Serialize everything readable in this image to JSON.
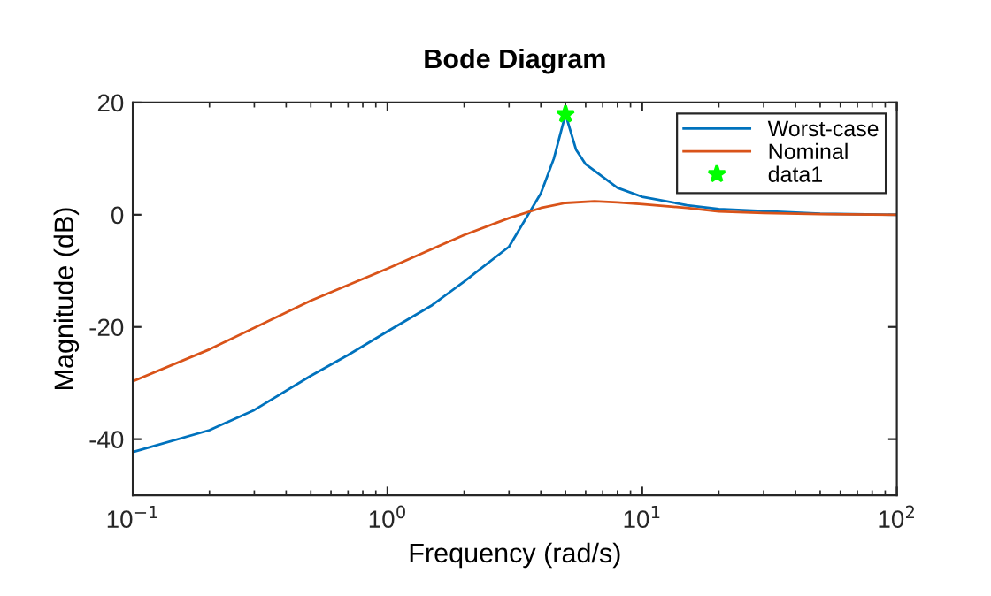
{
  "chart_data": {
    "type": "line",
    "title": "Bode Diagram",
    "xlabel": "Frequency (rad/s)",
    "ylabel": "Magnitude (dB)",
    "log": "x",
    "xlim": [
      0.1,
      100
    ],
    "xticks": [
      {
        "value": 0.1,
        "label": "10$^{−1}$"
      },
      {
        "value": 1,
        "label": "10$^{0}$"
      },
      {
        "value": 10,
        "label": "10$^{1}$"
      },
      {
        "value": 100,
        "label": "10$^{2}$"
      }
    ],
    "ylim": [
      -50,
      20
    ],
    "yticks": [
      -40,
      -20,
      0,
      20
    ],
    "grid": false,
    "legend": "top right",
    "marker": "none",
    "line_style": "solid",
    "series": [
      {
        "name": "Worst-case",
        "color": "#0072bd",
        "x": [
          0.1,
          0.2,
          0.3,
          0.5,
          0.7,
          1,
          1.5,
          2,
          3,
          4,
          4.5,
          5,
          5.5,
          6,
          8,
          10,
          15,
          20,
          50,
          100
        ],
        "values": [
          -42.3,
          -38.4,
          -34.8,
          -28.7,
          -25,
          -20.8,
          -16.1,
          -11.9,
          -5.7,
          3.8,
          10,
          17.9,
          11.6,
          9,
          4.8,
          3.2,
          1.7,
          1,
          0.2,
          0
        ]
      },
      {
        "name": "Nominal",
        "color": "#d95319",
        "x": [
          0.1,
          0.2,
          0.5,
          1,
          2,
          3,
          4,
          5,
          6.5,
          8,
          10,
          15,
          20,
          30,
          50,
          100
        ],
        "values": [
          -29.7,
          -24,
          -15.3,
          -9.6,
          -3.6,
          -0.6,
          1.2,
          2.1,
          2.4,
          2.2,
          1.9,
          1.2,
          0.6,
          0.3,
          0.1,
          0
        ]
      },
      {
        "name": "data1",
        "type": "scatter",
        "marker": "star",
        "color": "#00ff00",
        "x": [
          5
        ],
        "values": [
          17.9
        ]
      }
    ]
  }
}
